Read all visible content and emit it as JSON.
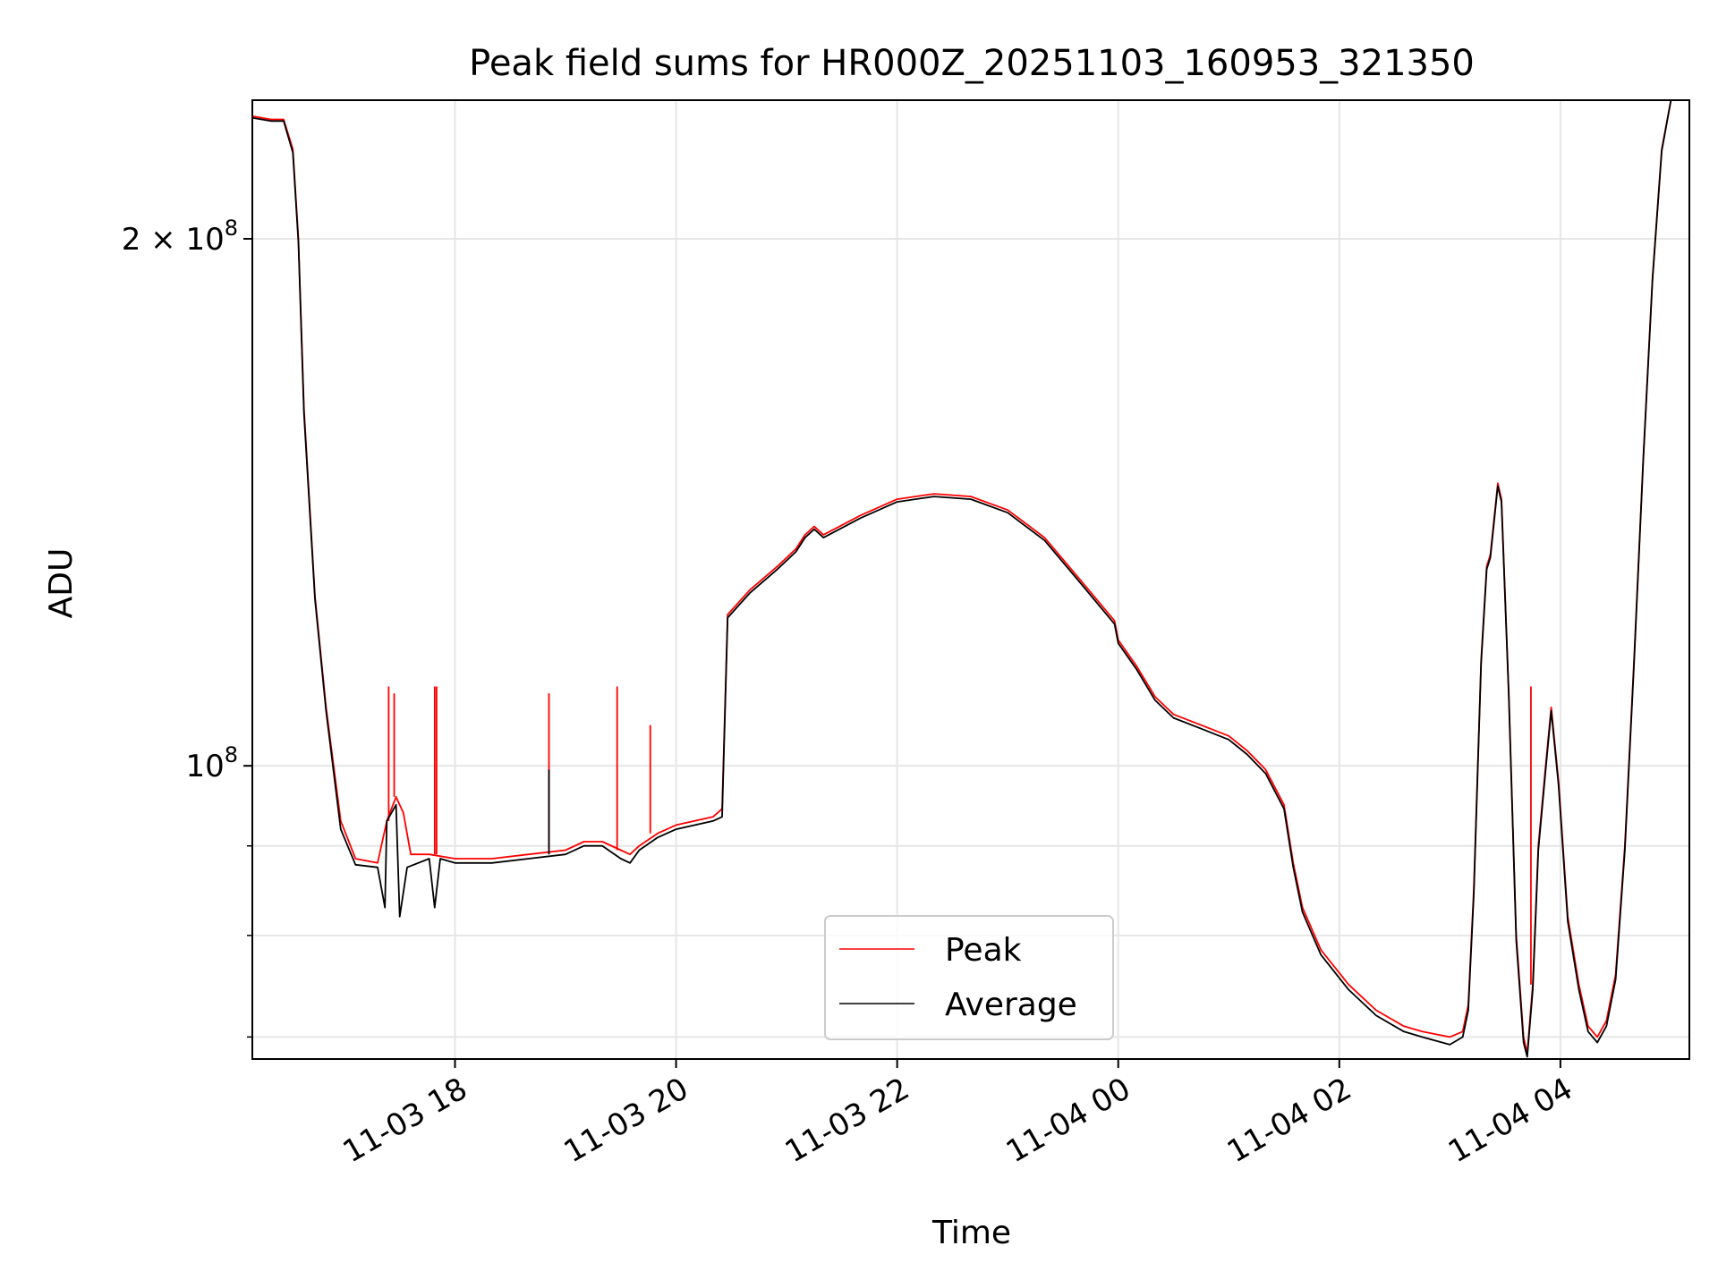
{
  "chart_data": {
    "type": "line",
    "title": "Peak field sums for HR000Z_20251103_160953_321350",
    "xlabel": "Time",
    "ylabel": "ADU",
    "yscale": "log",
    "grid": true,
    "legend_position": "lower-center",
    "x_range": [
      "2025-11-03T16:10",
      "2025-11-04T05:10"
    ],
    "ylim": [
      68000000,
      240000000
    ],
    "x_ticks": [
      {
        "t": "2025-11-03T18:00",
        "label": "11-03 18"
      },
      {
        "t": "2025-11-03T20:00",
        "label": "11-03 20"
      },
      {
        "t": "2025-11-03T22:00",
        "label": "11-03 22"
      },
      {
        "t": "2025-11-04T00:00",
        "label": "11-04 00"
      },
      {
        "t": "2025-11-04T02:00",
        "label": "11-04 02"
      },
      {
        "t": "2025-11-04T04:00",
        "label": "11-04 04"
      }
    ],
    "y_ticks_major": [
      {
        "value": 100000000,
        "base": "10",
        "exp": "8",
        "label": "10^8"
      },
      {
        "value": 200000000,
        "coef": "2",
        "base": "10",
        "exp": "8",
        "label": "2 × 10^8"
      }
    ],
    "y_ticks_minor": [
      70000000,
      80000000,
      90000000
    ],
    "series": [
      {
        "name": "Peak",
        "color": "#ff0000",
        "points": [
          [
            "2025-11-03T16:10",
            235000000
          ],
          [
            "2025-11-03T16:20",
            234000000
          ],
          [
            "2025-11-03T16:27",
            234000000
          ],
          [
            "2025-11-03T16:32",
            225000000
          ],
          [
            "2025-11-03T16:35",
            200000000
          ],
          [
            "2025-11-03T16:38",
            160000000
          ],
          [
            "2025-11-03T16:44",
            125000000
          ],
          [
            "2025-11-03T16:50",
            108000000
          ],
          [
            "2025-11-03T16:58",
            93000000
          ],
          [
            "2025-11-03T17:06",
            88500000
          ],
          [
            "2025-11-03T17:18",
            88000000
          ],
          [
            "2025-11-03T17:23",
            93000000
          ],
          [
            "2025-11-03T17:28",
            96000000
          ],
          [
            "2025-11-03T17:32",
            94000000
          ],
          [
            "2025-11-03T17:36",
            89000000
          ],
          [
            "2025-11-03T17:46",
            89000000
          ],
          [
            "2025-11-03T18:00",
            88500000
          ],
          [
            "2025-11-03T18:20",
            88500000
          ],
          [
            "2025-11-03T18:40",
            89000000
          ],
          [
            "2025-11-03T19:00",
            89500000
          ],
          [
            "2025-11-03T19:10",
            90500000
          ],
          [
            "2025-11-03T19:20",
            90500000
          ],
          [
            "2025-11-03T19:30",
            89500000
          ],
          [
            "2025-11-03T19:35",
            89000000
          ],
          [
            "2025-11-03T19:40",
            90000000
          ],
          [
            "2025-11-03T19:50",
            91500000
          ],
          [
            "2025-11-03T20:00",
            92500000
          ],
          [
            "2025-11-03T20:20",
            93500000
          ],
          [
            "2025-11-03T20:25",
            94500000
          ],
          [
            "2025-11-03T20:28",
            122000000
          ],
          [
            "2025-11-03T20:40",
            126000000
          ],
          [
            "2025-11-03T20:55",
            130000000
          ],
          [
            "2025-11-03T21:05",
            133000000
          ],
          [
            "2025-11-03T21:10",
            135500000
          ],
          [
            "2025-11-03T21:15",
            137000000
          ],
          [
            "2025-11-03T21:20",
            135500000
          ],
          [
            "2025-11-03T21:40",
            139000000
          ],
          [
            "2025-11-03T22:00",
            142000000
          ],
          [
            "2025-11-03T22:20",
            143000000
          ],
          [
            "2025-11-03T22:40",
            142500000
          ],
          [
            "2025-11-03T23:00",
            140000000
          ],
          [
            "2025-11-03T23:20",
            135000000
          ],
          [
            "2025-11-03T23:40",
            127500000
          ],
          [
            "2025-11-03T23:58",
            121000000
          ],
          [
            "2025-11-04T00:00",
            118000000
          ],
          [
            "2025-11-04T00:10",
            114000000
          ],
          [
            "2025-11-04T00:20",
            109500000
          ],
          [
            "2025-11-04T00:30",
            107000000
          ],
          [
            "2025-11-04T00:45",
            105500000
          ],
          [
            "2025-11-04T01:00",
            104000000
          ],
          [
            "2025-11-04T01:10",
            102000000
          ],
          [
            "2025-11-04T01:20",
            99500000
          ],
          [
            "2025-11-04T01:30",
            95000000
          ],
          [
            "2025-11-04T01:35",
            88000000
          ],
          [
            "2025-11-04T01:40",
            83000000
          ],
          [
            "2025-11-04T01:50",
            78500000
          ],
          [
            "2025-11-04T02:05",
            75000000
          ],
          [
            "2025-11-04T02:20",
            72500000
          ],
          [
            "2025-11-04T02:35",
            71000000
          ],
          [
            "2025-11-04T02:45",
            70500000
          ],
          [
            "2025-11-04T03:00",
            70000000
          ],
          [
            "2025-11-04T03:07",
            70500000
          ],
          [
            "2025-11-04T03:10",
            73000000
          ],
          [
            "2025-11-04T03:13",
            85000000
          ],
          [
            "2025-11-04T03:17",
            115000000
          ],
          [
            "2025-11-04T03:20",
            130000000
          ],
          [
            "2025-11-04T03:22",
            132000000
          ],
          [
            "2025-11-04T03:26",
            145000000
          ],
          [
            "2025-11-04T03:28",
            142000000
          ],
          [
            "2025-11-04T03:32",
            110000000
          ],
          [
            "2025-11-04T03:36",
            80000000
          ],
          [
            "2025-11-04T03:40",
            70000000
          ],
          [
            "2025-11-04T03:42",
            68500000
          ],
          [
            "2025-11-04T03:45",
            75000000
          ],
          [
            "2025-11-04T03:48",
            90000000
          ],
          [
            "2025-11-04T03:52",
            100000000
          ],
          [
            "2025-11-04T03:55",
            108000000
          ],
          [
            "2025-11-04T03:59",
            98000000
          ],
          [
            "2025-11-04T04:04",
            82000000
          ],
          [
            "2025-11-04T04:10",
            75000000
          ],
          [
            "2025-11-04T04:15",
            71000000
          ],
          [
            "2025-11-04T04:20",
            70000000
          ],
          [
            "2025-11-04T04:25",
            71500000
          ],
          [
            "2025-11-04T04:30",
            76000000
          ],
          [
            "2025-11-04T04:35",
            90000000
          ],
          [
            "2025-11-04T04:40",
            115000000
          ],
          [
            "2025-11-04T04:45",
            150000000
          ],
          [
            "2025-11-04T04:50",
            190000000
          ],
          [
            "2025-11-04T04:55",
            225000000
          ],
          [
            "2025-11-04T05:00",
            240000000
          ],
          [
            "2025-11-04T05:10",
            240000000
          ]
        ],
        "spikes": [
          [
            "2025-11-03T17:24",
            111000000
          ],
          [
            "2025-11-03T17:27",
            110000000
          ],
          [
            "2025-11-03T17:49",
            111000000
          ],
          [
            "2025-11-03T17:50",
            111000000
          ],
          [
            "2025-11-03T18:51",
            110000000
          ],
          [
            "2025-11-03T19:28",
            111000000
          ],
          [
            "2025-11-03T19:46",
            105500000
          ],
          [
            "2025-11-04T03:44",
            111000000
          ]
        ]
      },
      {
        "name": "Average",
        "color": "#000000",
        "points": [
          [
            "2025-11-03T16:10",
            234500000
          ],
          [
            "2025-11-03T16:20",
            233500000
          ],
          [
            "2025-11-03T16:27",
            233500000
          ],
          [
            "2025-11-03T16:32",
            224000000
          ],
          [
            "2025-11-03T16:35",
            199000000
          ],
          [
            "2025-11-03T16:38",
            159000000
          ],
          [
            "2025-11-03T16:44",
            124500000
          ],
          [
            "2025-11-03T16:50",
            107500000
          ],
          [
            "2025-11-03T16:58",
            92000000
          ],
          [
            "2025-11-03T17:06",
            87800000
          ],
          [
            "2025-11-03T17:18",
            87500000
          ],
          [
            "2025-11-03T17:22",
            83000000
          ],
          [
            "2025-11-03T17:23",
            93000000
          ],
          [
            "2025-11-03T17:28",
            95000000
          ],
          [
            "2025-11-03T17:30",
            82000000
          ],
          [
            "2025-11-03T17:34",
            87500000
          ],
          [
            "2025-11-03T17:46",
            88500000
          ],
          [
            "2025-11-03T17:49",
            83000000
          ],
          [
            "2025-11-03T17:52",
            88500000
          ],
          [
            "2025-11-03T18:00",
            88000000
          ],
          [
            "2025-11-03T18:20",
            88000000
          ],
          [
            "2025-11-03T18:40",
            88500000
          ],
          [
            "2025-11-03T19:00",
            89000000
          ],
          [
            "2025-11-03T19:10",
            90000000
          ],
          [
            "2025-11-03T19:20",
            90000000
          ],
          [
            "2025-11-03T19:30",
            88500000
          ],
          [
            "2025-11-03T19:35",
            88000000
          ],
          [
            "2025-11-03T19:40",
            89500000
          ],
          [
            "2025-11-03T19:50",
            91000000
          ],
          [
            "2025-11-03T20:00",
            92000000
          ],
          [
            "2025-11-03T20:20",
            93000000
          ],
          [
            "2025-11-03T20:25",
            93500000
          ],
          [
            "2025-11-03T20:28",
            121500000
          ],
          [
            "2025-11-03T20:40",
            125500000
          ],
          [
            "2025-11-03T20:55",
            129500000
          ],
          [
            "2025-11-03T21:05",
            132500000
          ],
          [
            "2025-11-03T21:10",
            135000000
          ],
          [
            "2025-11-03T21:15",
            136500000
          ],
          [
            "2025-11-03T21:20",
            135000000
          ],
          [
            "2025-11-03T21:40",
            138500000
          ],
          [
            "2025-11-03T22:00",
            141500000
          ],
          [
            "2025-11-03T22:20",
            142500000
          ],
          [
            "2025-11-03T22:40",
            142000000
          ],
          [
            "2025-11-03T23:00",
            139500000
          ],
          [
            "2025-11-03T23:20",
            134500000
          ],
          [
            "2025-11-03T23:40",
            127000000
          ],
          [
            "2025-11-03T23:58",
            120500000
          ],
          [
            "2025-11-04T00:00",
            117500000
          ],
          [
            "2025-11-04T00:10",
            113500000
          ],
          [
            "2025-11-04T00:20",
            109000000
          ],
          [
            "2025-11-04T00:30",
            106500000
          ],
          [
            "2025-11-04T00:45",
            105000000
          ],
          [
            "2025-11-04T01:00",
            103500000
          ],
          [
            "2025-11-04T01:10",
            101500000
          ],
          [
            "2025-11-04T01:20",
            99000000
          ],
          [
            "2025-11-04T01:30",
            94500000
          ],
          [
            "2025-11-04T01:35",
            87500000
          ],
          [
            "2025-11-04T01:40",
            82500000
          ],
          [
            "2025-11-04T01:50",
            78000000
          ],
          [
            "2025-11-04T02:05",
            74500000
          ],
          [
            "2025-11-04T02:20",
            72000000
          ],
          [
            "2025-11-04T02:35",
            70500000
          ],
          [
            "2025-11-04T02:45",
            70000000
          ],
          [
            "2025-11-04T03:00",
            69300000
          ],
          [
            "2025-11-04T03:07",
            70000000
          ],
          [
            "2025-11-04T03:10",
            72500000
          ],
          [
            "2025-11-04T03:13",
            84500000
          ],
          [
            "2025-11-04T03:17",
            114500000
          ],
          [
            "2025-11-04T03:20",
            129500000
          ],
          [
            "2025-11-04T03:22",
            131500000
          ],
          [
            "2025-11-04T03:26",
            144500000
          ],
          [
            "2025-11-04T03:28",
            141500000
          ],
          [
            "2025-11-04T03:32",
            109500000
          ],
          [
            "2025-11-04T03:36",
            79500000
          ],
          [
            "2025-11-04T03:40",
            69500000
          ],
          [
            "2025-11-04T03:42",
            68200000
          ],
          [
            "2025-11-04T03:45",
            74500000
          ],
          [
            "2025-11-04T03:48",
            89500000
          ],
          [
            "2025-11-04T03:52",
            99500000
          ],
          [
            "2025-11-04T03:55",
            107500000
          ],
          [
            "2025-11-04T03:59",
            97500000
          ],
          [
            "2025-11-04T04:04",
            81500000
          ],
          [
            "2025-11-04T04:10",
            74500000
          ],
          [
            "2025-11-04T04:15",
            70500000
          ],
          [
            "2025-11-04T04:20",
            69500000
          ],
          [
            "2025-11-04T04:25",
            71000000
          ],
          [
            "2025-11-04T04:30",
            75500000
          ],
          [
            "2025-11-04T04:35",
            89500000
          ],
          [
            "2025-11-04T04:40",
            114500000
          ],
          [
            "2025-11-04T04:45",
            149500000
          ],
          [
            "2025-11-04T04:50",
            189500000
          ],
          [
            "2025-11-04T04:55",
            224500000
          ],
          [
            "2025-11-04T05:00",
            240000000
          ],
          [
            "2025-11-04T05:10",
            240000000
          ]
        ],
        "spikes": [
          [
            "2025-11-03T18:51",
            99500000
          ]
        ]
      }
    ],
    "legend": [
      {
        "label": "Peak",
        "color": "#ff0000"
      },
      {
        "label": "Average",
        "color": "#000000"
      }
    ]
  }
}
